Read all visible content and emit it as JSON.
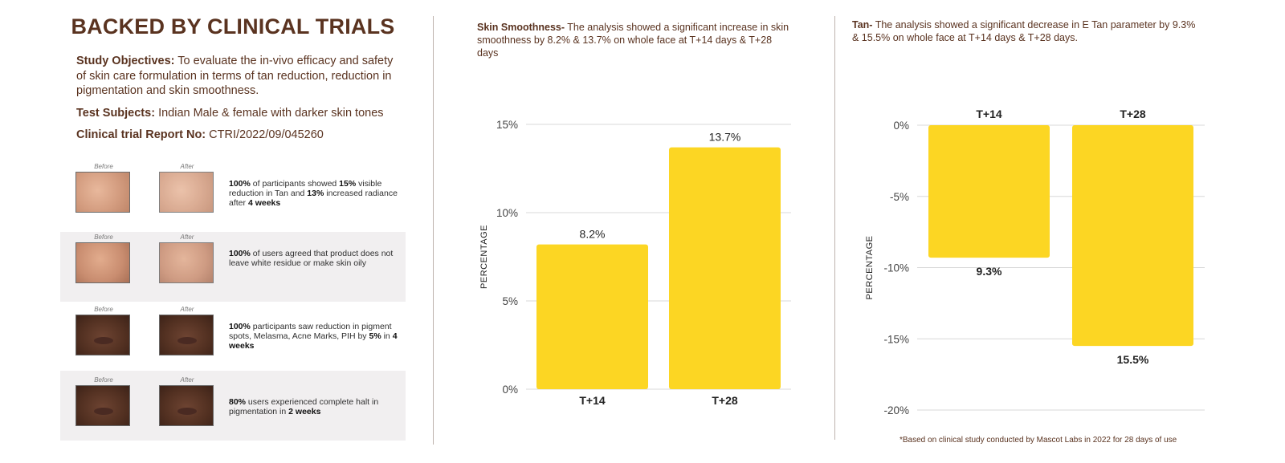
{
  "title": "BACKED BY CLINICAL TRIALS",
  "study": {
    "objectives_label": "Study Objectives:",
    "objectives_text": "To evaluate the in-vivo efficacy and safety of skin care formulation in terms of tan reduction, reduction in pigmentation and skin smoothness.",
    "subjects_label": "Test Subjects:",
    "subjects_text": "Indian Male & female with darker skin tones",
    "report_label": "Clinical trial Report No:",
    "report_text": "CTRI/2022/09/045260"
  },
  "results": [
    {
      "before": "Before",
      "after": "After",
      "b1": "100%",
      "t1": " of participants showed ",
      "b2": "15%",
      "t2": " visible reduction in Tan and ",
      "b3": "13%",
      "t3": " increased radiance after ",
      "b4": "4 weeks",
      "t4": ""
    },
    {
      "before": "Before",
      "after": "After",
      "b1": "100%",
      "t1": " of users agreed that product does not leave white residue or make skin oily",
      "b2": "",
      "t2": "",
      "b3": "",
      "t3": "",
      "b4": "",
      "t4": ""
    },
    {
      "before": "Before",
      "after": "After",
      "b1": "100%",
      "t1": " participants saw reduction in pigment spots, Melasma, Acne Marks, PIH by ",
      "b2": "5%",
      "t2": " in ",
      "b3": "4 weeks",
      "t3": "",
      "b4": "",
      "t4": ""
    },
    {
      "before": "Before",
      "after": "After",
      "b1": "80%",
      "t1": " users experienced complete halt in pigmentation in ",
      "b2": "2 weeks",
      "t2": "",
      "b3": "",
      "t3": "",
      "b4": "",
      "t4": ""
    }
  ],
  "smoothness_note": {
    "label": "Skin Smoothness-",
    "text": " The analysis showed a significant increase in skin smoothness by 8.2% & 13.7% on whole face at T+14 days & T+28 days"
  },
  "tan_note": {
    "label": "Tan-",
    "text": " The analysis showed a significant decrease in E Tan parameter by 9.3% & 15.5% on whole face at T+14 days & T+28 days."
  },
  "footnote": "*Based on clinical study conducted by Mascot Labs in 2022 for 28 days of use",
  "colors": {
    "bar": "#fcd623",
    "text": "#5a3320",
    "grid": "#d8d8d8"
  },
  "chart_data": [
    {
      "type": "bar",
      "categories": [
        "T+14",
        "T+28"
      ],
      "values": [
        8.2,
        13.7
      ],
      "labels": [
        "8.2%",
        "13.7%"
      ],
      "ylabel": "PERCENTAGE",
      "ylim": [
        0,
        15
      ],
      "yticks": [
        0,
        5,
        10,
        15
      ],
      "ytick_labels": [
        "0%",
        "5%",
        "10%",
        "15%"
      ],
      "category_axis": "bottom",
      "grid": true
    },
    {
      "type": "bar",
      "categories": [
        "T+14",
        "T+28"
      ],
      "values": [
        -9.3,
        -15.5
      ],
      "labels": [
        "9.3%",
        "15.5%"
      ],
      "ylabel": "PERCENTAGE",
      "ylim": [
        -20,
        0
      ],
      "yticks": [
        0,
        -5,
        -10,
        -15,
        -20
      ],
      "ytick_labels": [
        "0%",
        "-5%",
        "-10%",
        "-15%",
        "-20%"
      ],
      "category_axis": "top",
      "grid": true
    }
  ]
}
